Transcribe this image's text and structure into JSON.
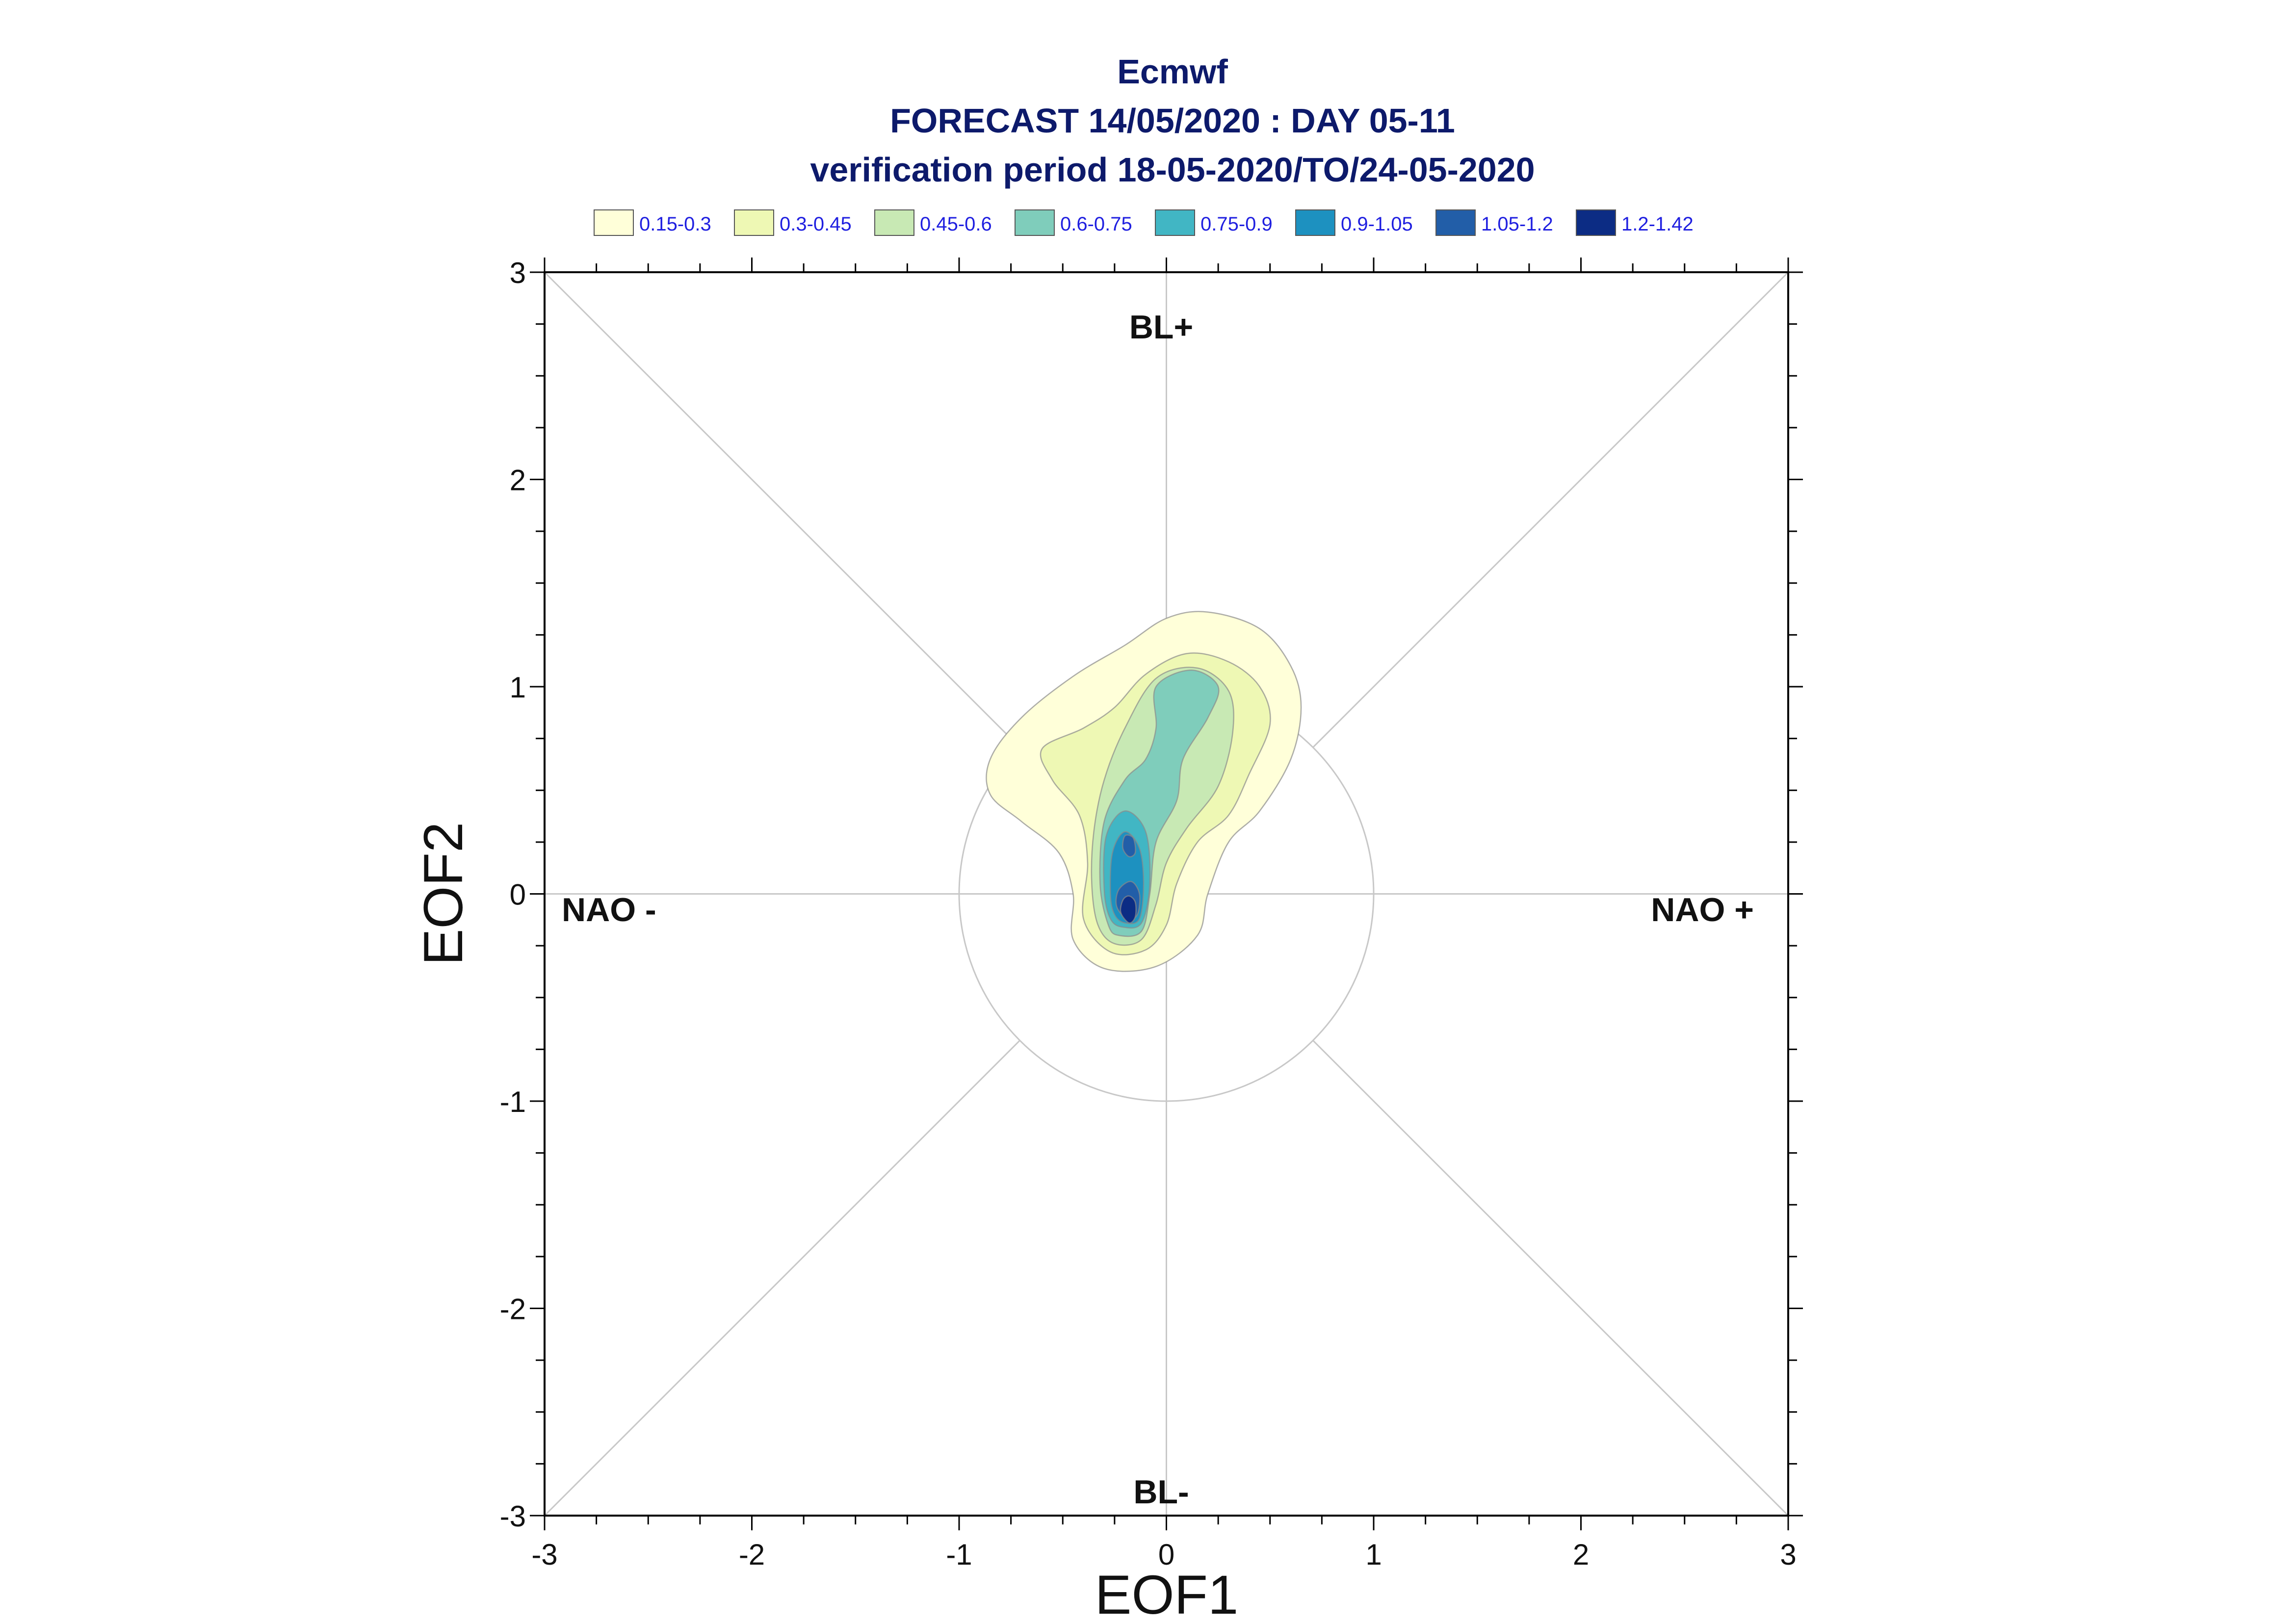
{
  "chart_data": {
    "type": "contour",
    "title": "Ecmwf",
    "subtitle_1": "FORECAST 14/05/2020 : DAY 05-11",
    "subtitle_2": "verification period 18-05-2020/TO/24-05-2020",
    "xlabel": "EOF1",
    "ylabel": "EOF2",
    "xlim": [
      -3,
      3
    ],
    "ylim": [
      -3,
      3
    ],
    "xticks": [
      "-3",
      "-2",
      "-1",
      "0",
      "1",
      "2",
      "3"
    ],
    "yticks": [
      "-3",
      "-2",
      "-1",
      "0",
      "1",
      "2",
      "3"
    ],
    "regimes": {
      "top": "BL+",
      "bottom": "BL-",
      "left": "NAO -",
      "right": "NAO +"
    },
    "reference_circle_radius": 1,
    "diagonal_lines": true,
    "legend": {
      "position": "top",
      "entries": [
        {
          "label": "0.15-0.3",
          "color": "#ffffd9"
        },
        {
          "label": "0.3-0.45",
          "color": "#eef8b4"
        },
        {
          "label": "0.45-0.6",
          "color": "#c8e9b4"
        },
        {
          "label": "0.6-0.75",
          "color": "#7fcdbb"
        },
        {
          "label": "0.75-0.9",
          "color": "#41b6c4"
        },
        {
          "label": "0.9-1.05",
          "color": "#1d91c0"
        },
        {
          "label": "1.05-1.2",
          "color": "#225ea8"
        },
        {
          "label": "1.2-1.42",
          "color": "#0c2c84"
        }
      ]
    },
    "density_levels": [
      {
        "level": "0.15-0.3",
        "contour": [
          [
            -0.3,
            -0.36
          ],
          [
            -0.05,
            -0.35
          ],
          [
            0.15,
            -0.2
          ],
          [
            0.2,
            0.0
          ],
          [
            0.3,
            0.25
          ],
          [
            0.45,
            0.4
          ],
          [
            0.6,
            0.65
          ],
          [
            0.65,
            0.9
          ],
          [
            0.6,
            1.1
          ],
          [
            0.45,
            1.28
          ],
          [
            0.2,
            1.36
          ],
          [
            0.0,
            1.33
          ],
          [
            -0.2,
            1.2
          ],
          [
            -0.45,
            1.05
          ],
          [
            -0.7,
            0.85
          ],
          [
            -0.85,
            0.65
          ],
          [
            -0.85,
            0.48
          ],
          [
            -0.7,
            0.35
          ],
          [
            -0.52,
            0.2
          ],
          [
            -0.45,
            0.0
          ],
          [
            -0.45,
            -0.22
          ]
        ]
      },
      {
        "level": "0.3-0.45",
        "contour": [
          [
            -0.27,
            -0.28
          ],
          [
            -0.1,
            -0.27
          ],
          [
            0.0,
            -0.15
          ],
          [
            0.05,
            0.05
          ],
          [
            0.15,
            0.25
          ],
          [
            0.3,
            0.38
          ],
          [
            0.4,
            0.58
          ],
          [
            0.5,
            0.82
          ],
          [
            0.45,
            1.0
          ],
          [
            0.3,
            1.12
          ],
          [
            0.1,
            1.16
          ],
          [
            -0.1,
            1.06
          ],
          [
            -0.25,
            0.9
          ],
          [
            -0.4,
            0.8
          ],
          [
            -0.6,
            0.7
          ],
          [
            -0.55,
            0.55
          ],
          [
            -0.42,
            0.38
          ],
          [
            -0.38,
            0.15
          ],
          [
            -0.4,
            -0.12
          ]
        ]
      },
      {
        "level": "0.45-0.6",
        "contour": [
          [
            -0.25,
            -0.24
          ],
          [
            -0.12,
            -0.22
          ],
          [
            -0.05,
            -0.05
          ],
          [
            0.0,
            0.15
          ],
          [
            0.1,
            0.32
          ],
          [
            0.25,
            0.52
          ],
          [
            0.32,
            0.78
          ],
          [
            0.3,
            0.98
          ],
          [
            0.15,
            1.09
          ],
          [
            -0.05,
            1.04
          ],
          [
            -0.2,
            0.8
          ],
          [
            -0.3,
            0.55
          ],
          [
            -0.35,
            0.3
          ],
          [
            -0.36,
            0.05
          ],
          [
            -0.33,
            -0.15
          ]
        ]
      },
      {
        "level": "0.6-0.75",
        "contour": [
          [
            -0.23,
            -0.2
          ],
          [
            -0.12,
            -0.18
          ],
          [
            -0.08,
            0.0
          ],
          [
            -0.05,
            0.25
          ],
          [
            0.05,
            0.45
          ],
          [
            0.08,
            0.65
          ],
          [
            0.2,
            0.85
          ],
          [
            0.25,
            1.0
          ],
          [
            0.12,
            1.08
          ],
          [
            -0.05,
            1.0
          ],
          [
            -0.05,
            0.8
          ],
          [
            -0.1,
            0.65
          ],
          [
            -0.2,
            0.55
          ],
          [
            -0.3,
            0.35
          ],
          [
            -0.32,
            0.05
          ],
          [
            -0.28,
            -0.15
          ]
        ]
      },
      {
        "level": "0.75-0.9",
        "contour": [
          [
            -0.21,
            -0.16
          ],
          [
            -0.12,
            -0.14
          ],
          [
            -0.08,
            0.05
          ],
          [
            -0.1,
            0.3
          ],
          [
            -0.2,
            0.4
          ],
          [
            -0.29,
            0.28
          ],
          [
            -0.3,
            0.02
          ],
          [
            -0.27,
            -0.12
          ]
        ]
      },
      {
        "level": "0.9-1.05",
        "contour": [
          [
            -0.2,
            -0.14
          ],
          [
            -0.13,
            -0.12
          ],
          [
            -0.11,
            0.05
          ],
          [
            -0.13,
            0.22
          ],
          [
            -0.2,
            0.3
          ],
          [
            -0.26,
            0.2
          ],
          [
            -0.27,
            0.0
          ],
          [
            -0.25,
            -0.1
          ]
        ]
      },
      {
        "level": "1.05-1.2",
        "contour": [
          [
            -0.19,
            -0.12
          ],
          [
            -0.14,
            -0.1
          ],
          [
            -0.13,
            0.0
          ],
          [
            -0.17,
            0.06
          ],
          [
            -0.23,
            0.02
          ],
          [
            -0.24,
            -0.06
          ]
        ]
      },
      {
        "level": "1.05-1.2",
        "contour": [
          [
            -0.18,
            0.18
          ],
          [
            -0.15,
            0.2
          ],
          [
            -0.16,
            0.27
          ],
          [
            -0.2,
            0.28
          ],
          [
            -0.21,
            0.22
          ]
        ]
      },
      {
        "level": "1.2-1.42",
        "contour": [
          [
            -0.18,
            -0.14
          ],
          [
            -0.15,
            -0.11
          ],
          [
            -0.15,
            -0.04
          ],
          [
            -0.18,
            -0.01
          ],
          [
            -0.21,
            -0.03
          ],
          [
            -0.22,
            -0.09
          ]
        ]
      }
    ]
  }
}
